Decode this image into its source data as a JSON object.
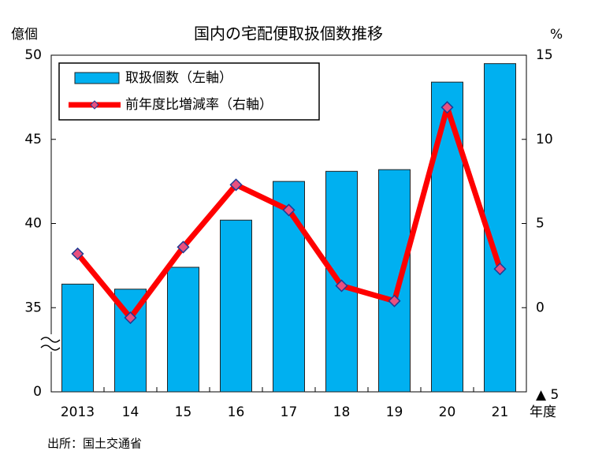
{
  "chart_data": {
    "type": "bar_line",
    "title": "国内の宅配便取扱個数推移",
    "y_label": "億個",
    "y2_label": "%",
    "x_label": "年度",
    "source": "出所：国土交通省",
    "categories": [
      "2013",
      "14",
      "15",
      "16",
      "17",
      "18",
      "19",
      "20",
      "21"
    ],
    "series": [
      {
        "name": "取扱個数（左軸）",
        "type": "bar",
        "color": "#00b0f0",
        "values": [
          36.4,
          36.1,
          37.4,
          40.2,
          42.5,
          43.1,
          43.2,
          48.4,
          49.5
        ]
      },
      {
        "name": "前年度比増減率（右軸）",
        "type": "line",
        "axis": "y2",
        "color": "#ff0000",
        "marker_color": "#e8507f",
        "values": [
          3.2,
          -0.6,
          3.6,
          7.3,
          5.8,
          1.3,
          0.4,
          11.9,
          2.3
        ]
      }
    ],
    "ylim": [
      30,
      50
    ],
    "yticks": [
      {
        "value": 30,
        "label": "0"
      },
      35,
      40,
      45,
      50
    ],
    "y2lim": [
      -5,
      15
    ],
    "y2ticks": [
      {
        "value": -5,
        "label": "▲ 5"
      },
      0,
      5,
      10,
      15
    ],
    "legend": "upper left"
  }
}
